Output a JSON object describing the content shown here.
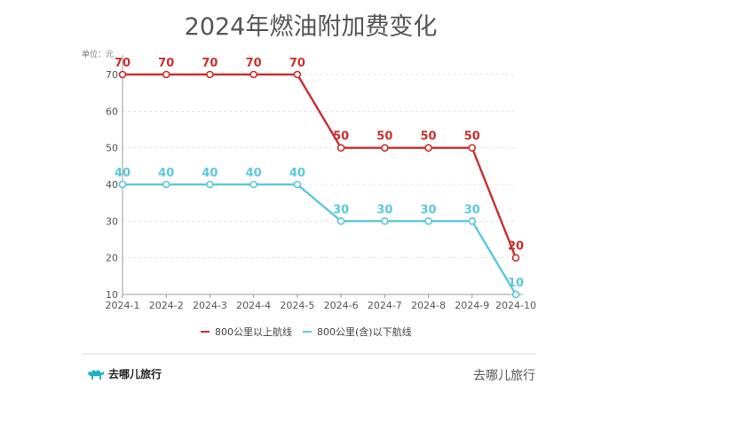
{
  "chart_data": {
    "type": "line",
    "title": "2024年燃油附加费变化",
    "unit_label": "单位：元",
    "categories": [
      "2024-1",
      "2024-2",
      "2024-3",
      "2024-4",
      "2024-5",
      "2024-6",
      "2024-7",
      "2024-8",
      "2024-9",
      "2024-10"
    ],
    "y_ticks": [
      "10",
      "20",
      "30",
      "40",
      "50",
      "60",
      "70"
    ],
    "ylim": [
      10,
      70
    ],
    "grid": true,
    "legend_position": "bottom",
    "series": [
      {
        "name": "800公里以上航线",
        "color": "#c9302c",
        "values": [
          70,
          70,
          70,
          70,
          70,
          50,
          50,
          50,
          50,
          20
        ],
        "labels": [
          "70",
          "70",
          "70",
          "70",
          "70",
          "50",
          "50",
          "50",
          "50",
          "20"
        ]
      },
      {
        "name": "800公里(含)以下航线",
        "color": "#5bc8dc",
        "values": [
          40,
          40,
          40,
          40,
          40,
          30,
          30,
          30,
          30,
          10
        ],
        "labels": [
          "40",
          "40",
          "40",
          "40",
          "40",
          "30",
          "30",
          "30",
          "30",
          "10"
        ]
      }
    ]
  },
  "footer": {
    "logo_text": "去哪儿旅行",
    "source_text": "去哪儿旅行",
    "logo_icon": "camel-icon"
  }
}
